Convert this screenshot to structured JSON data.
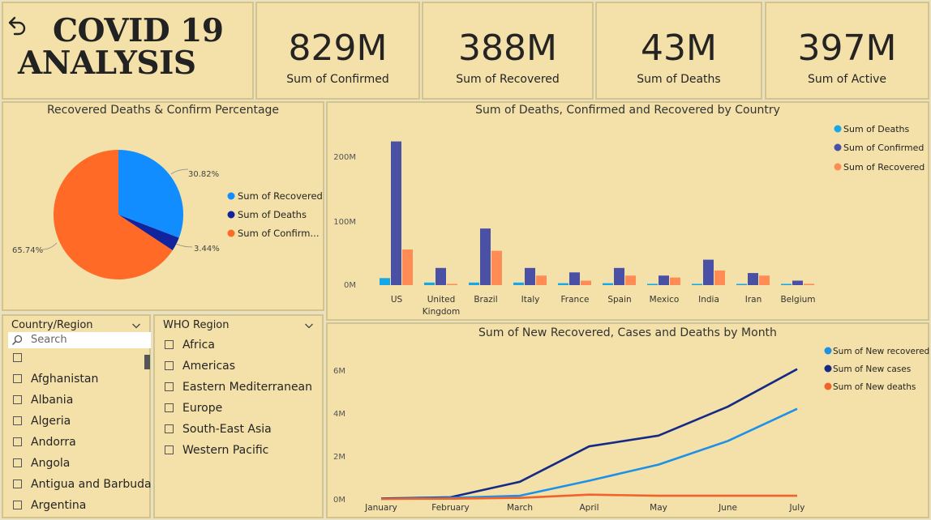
{
  "header": {
    "title_line1": "COVID 19",
    "title_line2": "ANALYSIS"
  },
  "kpis": [
    {
      "value": "829M",
      "label": "Sum of Confirmed"
    },
    {
      "value": "388M",
      "label": "Sum of Recovered"
    },
    {
      "value": "43M",
      "label": "Sum of Deaths"
    },
    {
      "value": "397M",
      "label": "Sum of Active"
    }
  ],
  "pie": {
    "title": "Recovered Deaths & Confirm Percentage",
    "legend": [
      "Sum of Recovered",
      "Sum of Deaths",
      "Sum of Confirm..."
    ],
    "labels": [
      "30.82%",
      "3.44%",
      "65.74%"
    ]
  },
  "bar": {
    "title": "Sum of Deaths, Confirmed and Recovered by Country",
    "legend": [
      "Sum of Deaths",
      "Sum of Confirmed",
      "Sum of Recovered"
    ],
    "y_ticks": [
      "200M",
      "100M",
      "0M"
    ],
    "x_labels": [
      "US",
      "United Kingdom",
      "Brazil",
      "Italy",
      "France",
      "Spain",
      "Mexico",
      "India",
      "Iran",
      "Belgium"
    ]
  },
  "line": {
    "title": "Sum of New Recovered, Cases and Deaths by Month",
    "legend": [
      "Sum of New recovered",
      "Sum of New cases",
      "Sum of New deaths"
    ],
    "y_ticks": [
      "6M",
      "4M",
      "2M",
      "0M"
    ],
    "x_labels": [
      "January",
      "February",
      "March",
      "April",
      "May",
      "June",
      "July"
    ]
  },
  "slicer_country": {
    "header": "Country/Region",
    "search_placeholder": "Search",
    "items": [
      "",
      "Afghanistan",
      "Albania",
      "Algeria",
      "Andorra",
      "Angola",
      "Antigua and Barbuda",
      "Argentina"
    ]
  },
  "slicer_who": {
    "header": "WHO Region",
    "items": [
      "Africa",
      "Americas",
      "Eastern Mediterranean",
      "Europe",
      "South-East Asia",
      "Western Pacific"
    ]
  },
  "colors": {
    "recovered_pie": "#118dff",
    "deaths_pie": "#12239e",
    "confirmed_pie": "#ff6a26",
    "deaths_bar": "#14a8e8",
    "confirmed_bar": "#4a51a4",
    "recovered_bar": "#ff8c55",
    "new_recovered": "#1e90e8",
    "new_cases": "#152a85",
    "new_deaths": "#f0632b",
    "background": "#f3e1a9"
  },
  "chart_data": [
    {
      "type": "pie",
      "title": "Recovered Deaths & Confirm Percentage",
      "slices": [
        {
          "name": "Sum of Recovered",
          "value": 30.82
        },
        {
          "name": "Sum of Deaths",
          "value": 3.44
        },
        {
          "name": "Sum of Confirmed",
          "value": 65.74
        }
      ]
    },
    {
      "type": "bar",
      "title": "Sum of Deaths, Confirmed and Recovered by Country",
      "categories": [
        "US",
        "United Kingdom",
        "Brazil",
        "Italy",
        "France",
        "Spain",
        "Mexico",
        "India",
        "Iran",
        "Belgium"
      ],
      "series": [
        {
          "name": "Sum of Deaths",
          "values": [
            11,
            4,
            4,
            4,
            3,
            3,
            2,
            1,
            1,
            1
          ]
        },
        {
          "name": "Sum of Confirmed",
          "values": [
            226,
            27,
            89,
            27,
            20,
            27,
            15,
            40,
            19,
            7
          ]
        },
        {
          "name": "Sum of Recovered",
          "values": [
            56,
            1,
            54,
            15,
            7,
            15,
            12,
            23,
            15,
            2
          ]
        }
      ],
      "ylim": [
        0,
        230
      ],
      "y_unit": "M"
    },
    {
      "type": "line",
      "title": "Sum of New Recovered, Cases and Deaths by Month",
      "x": [
        "January",
        "February",
        "March",
        "April",
        "May",
        "June",
        "July"
      ],
      "series": [
        {
          "name": "Sum of New recovered",
          "values": [
            0.0,
            0.05,
            0.15,
            0.85,
            1.6,
            2.7,
            4.2
          ]
        },
        {
          "name": "Sum of New cases",
          "values": [
            0.02,
            0.08,
            0.8,
            2.45,
            2.95,
            4.3,
            6.05
          ]
        },
        {
          "name": "Sum of New deaths",
          "values": [
            0.0,
            0.01,
            0.05,
            0.2,
            0.15,
            0.15,
            0.15
          ]
        }
      ],
      "ylim": [
        0,
        6.5
      ],
      "y_unit": "M"
    }
  ]
}
